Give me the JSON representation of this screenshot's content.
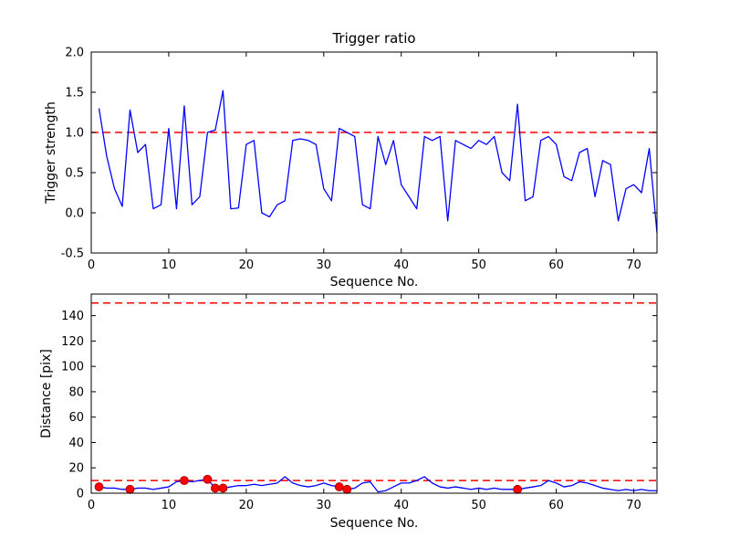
{
  "figure": {
    "background": "#ffffff",
    "series_color": "#0000ff",
    "threshold_color": "#ff0000",
    "frame_color": "#000000"
  },
  "chart_data": [
    {
      "type": "line",
      "title": "Trigger ratio",
      "xlabel": "Sequence No.",
      "ylabel": "Trigger strength",
      "xlim": [
        0,
        73
      ],
      "ylim": [
        -0.5,
        2.0
      ],
      "xticks": [
        0,
        10,
        20,
        30,
        40,
        50,
        60,
        70
      ],
      "xtick_labels": [
        "0",
        "10",
        "20",
        "30",
        "40",
        "50",
        "60",
        "70"
      ],
      "yticks": [
        -0.5,
        0.0,
        0.5,
        1.0,
        1.5,
        2.0
      ],
      "ytick_labels": [
        "-0.5",
        "0.0",
        "0.5",
        "1.0",
        "1.5",
        "2.0"
      ],
      "grid": false,
      "legend": "none",
      "hlines": [
        {
          "y": 1.0,
          "color": "#ff0000",
          "style": "dashed"
        }
      ],
      "x": [
        1,
        2,
        3,
        4,
        5,
        6,
        7,
        8,
        9,
        10,
        11,
        12,
        13,
        14,
        15,
        16,
        17,
        18,
        19,
        20,
        21,
        22,
        23,
        24,
        25,
        26,
        27,
        28,
        29,
        30,
        31,
        32,
        33,
        34,
        35,
        36,
        37,
        38,
        39,
        40,
        41,
        42,
        43,
        44,
        45,
        46,
        47,
        48,
        49,
        50,
        51,
        52,
        53,
        54,
        55,
        56,
        57,
        58,
        59,
        60,
        61,
        62,
        63,
        64,
        65,
        66,
        67,
        68,
        69,
        70,
        71,
        72,
        73
      ],
      "values": [
        1.3,
        0.7,
        0.3,
        0.08,
        1.28,
        0.75,
        0.85,
        0.05,
        0.1,
        1.05,
        0.05,
        1.33,
        0.1,
        0.2,
        1.0,
        1.03,
        1.52,
        0.05,
        0.06,
        0.85,
        0.9,
        0.0,
        -0.05,
        0.1,
        0.15,
        0.9,
        0.92,
        0.9,
        0.85,
        0.3,
        0.15,
        1.05,
        1.0,
        0.95,
        0.1,
        0.05,
        0.95,
        0.6,
        0.9,
        0.35,
        0.2,
        0.05,
        0.95,
        0.9,
        0.95,
        -0.1,
        0.9,
        0.85,
        0.8,
        0.9,
        0.85,
        0.95,
        0.5,
        0.4,
        1.35,
        0.15,
        0.2,
        0.9,
        0.95,
        0.85,
        0.45,
        0.4,
        0.75,
        0.8,
        0.2,
        0.65,
        0.6,
        -0.1,
        0.3,
        0.35,
        0.25,
        0.8,
        -0.25
      ],
      "markers": {
        "points": [],
        "color": "#ff0000"
      }
    },
    {
      "type": "line",
      "title": "",
      "xlabel": "Sequence No.",
      "ylabel": "Distance [pix]",
      "xlim": [
        0,
        73
      ],
      "ylim": [
        0,
        157
      ],
      "xticks": [
        0,
        10,
        20,
        30,
        40,
        50,
        60,
        70
      ],
      "xtick_labels": [
        "0",
        "10",
        "20",
        "30",
        "40",
        "50",
        "60",
        "70"
      ],
      "yticks": [
        0,
        20,
        40,
        60,
        80,
        100,
        120,
        140
      ],
      "ytick_labels": [
        "0",
        "20",
        "40",
        "60",
        "80",
        "100",
        "120",
        "140"
      ],
      "grid": false,
      "legend": "none",
      "hlines": [
        {
          "y": 150,
          "color": "#ff0000",
          "style": "dashed"
        },
        {
          "y": 10,
          "color": "#ff0000",
          "style": "dashed"
        }
      ],
      "x": [
        1,
        2,
        3,
        4,
        5,
        6,
        7,
        8,
        9,
        10,
        11,
        12,
        13,
        14,
        15,
        16,
        17,
        18,
        19,
        20,
        21,
        22,
        23,
        24,
        25,
        26,
        27,
        28,
        29,
        30,
        31,
        32,
        33,
        34,
        35,
        36,
        37,
        38,
        39,
        40,
        41,
        42,
        43,
        44,
        45,
        46,
        47,
        48,
        49,
        50,
        51,
        52,
        53,
        54,
        55,
        56,
        57,
        58,
        59,
        60,
        61,
        62,
        63,
        64,
        65,
        66,
        67,
        68,
        69,
        70,
        71,
        72,
        73
      ],
      "values": [
        5,
        4,
        4,
        3,
        3,
        4,
        4,
        3,
        4,
        5,
        9,
        10,
        9,
        10,
        11,
        4,
        4,
        5,
        6,
        6,
        7,
        6,
        7,
        8,
        13,
        8,
        6,
        5,
        6,
        8,
        6,
        5,
        3,
        4,
        8,
        9,
        1,
        2,
        5,
        8,
        8,
        10,
        13,
        8,
        5,
        4,
        5,
        4,
        3,
        4,
        3,
        4,
        3,
        3,
        3,
        4,
        5,
        6,
        10,
        8,
        5,
        6,
        9,
        8,
        6,
        4,
        3,
        2,
        3,
        2,
        3,
        2,
        2
      ],
      "markers": {
        "points": [
          [
            1,
            5
          ],
          [
            5,
            3
          ],
          [
            12,
            10
          ],
          [
            15,
            11
          ],
          [
            16,
            4
          ],
          [
            17,
            4
          ],
          [
            32,
            5
          ],
          [
            33,
            3
          ],
          [
            55,
            3
          ]
        ],
        "color": "#ff0000"
      }
    }
  ]
}
